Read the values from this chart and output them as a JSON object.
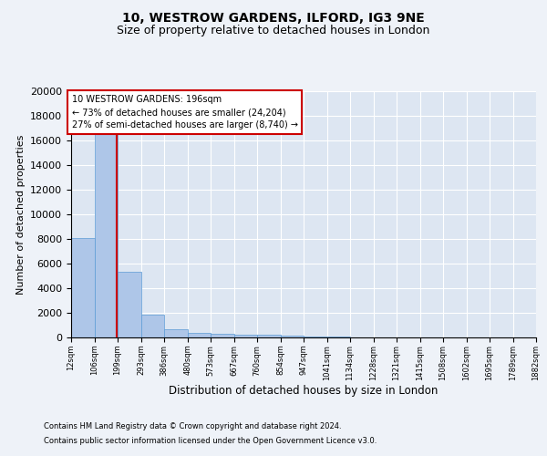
{
  "title1": "10, WESTROW GARDENS, ILFORD, IG3 9NE",
  "title2": "Size of property relative to detached houses in London",
  "xlabel": "Distribution of detached houses by size in London",
  "ylabel": "Number of detached properties",
  "bar_values": [
    8100,
    16500,
    5300,
    1850,
    700,
    350,
    280,
    230,
    200,
    130,
    80,
    50,
    30,
    20,
    15,
    10,
    8,
    5,
    4,
    3
  ],
  "bin_edges": [
    12,
    106,
    199,
    293,
    386,
    480,
    573,
    667,
    760,
    854,
    947,
    1041,
    1134,
    1228,
    1321,
    1415,
    1508,
    1602,
    1695,
    1789,
    1882
  ],
  "bar_color": "#aec6e8",
  "bar_edge_color": "#5b9bd5",
  "property_line_x": 196,
  "property_line_color": "#cc0000",
  "annotation_line1": "10 WESTROW GARDENS: 196sqm",
  "annotation_line2": "← 73% of detached houses are smaller (24,204)",
  "annotation_line3": "27% of semi-detached houses are larger (8,740) →",
  "annotation_box_color": "#cc0000",
  "ylim": [
    0,
    20000
  ],
  "yticks": [
    0,
    2000,
    4000,
    6000,
    8000,
    10000,
    12000,
    14000,
    16000,
    18000,
    20000
  ],
  "tick_labels": [
    "12sqm",
    "106sqm",
    "199sqm",
    "293sqm",
    "386sqm",
    "480sqm",
    "573sqm",
    "667sqm",
    "760sqm",
    "854sqm",
    "947sqm",
    "1041sqm",
    "1134sqm",
    "1228sqm",
    "1321sqm",
    "1415sqm",
    "1508sqm",
    "1602sqm",
    "1695sqm",
    "1789sqm",
    "1882sqm"
  ],
  "footer1": "Contains HM Land Registry data © Crown copyright and database right 2024.",
  "footer2": "Contains public sector information licensed under the Open Government Licence v3.0.",
  "bg_color": "#eef2f8",
  "plot_bg_color": "#dde6f2",
  "title1_fontsize": 10,
  "title2_fontsize": 9,
  "ylabel_fontsize": 8,
  "xlabel_fontsize": 8.5,
  "ytick_fontsize": 8,
  "xtick_fontsize": 6,
  "footer_fontsize": 6,
  "annot_fontsize": 7
}
